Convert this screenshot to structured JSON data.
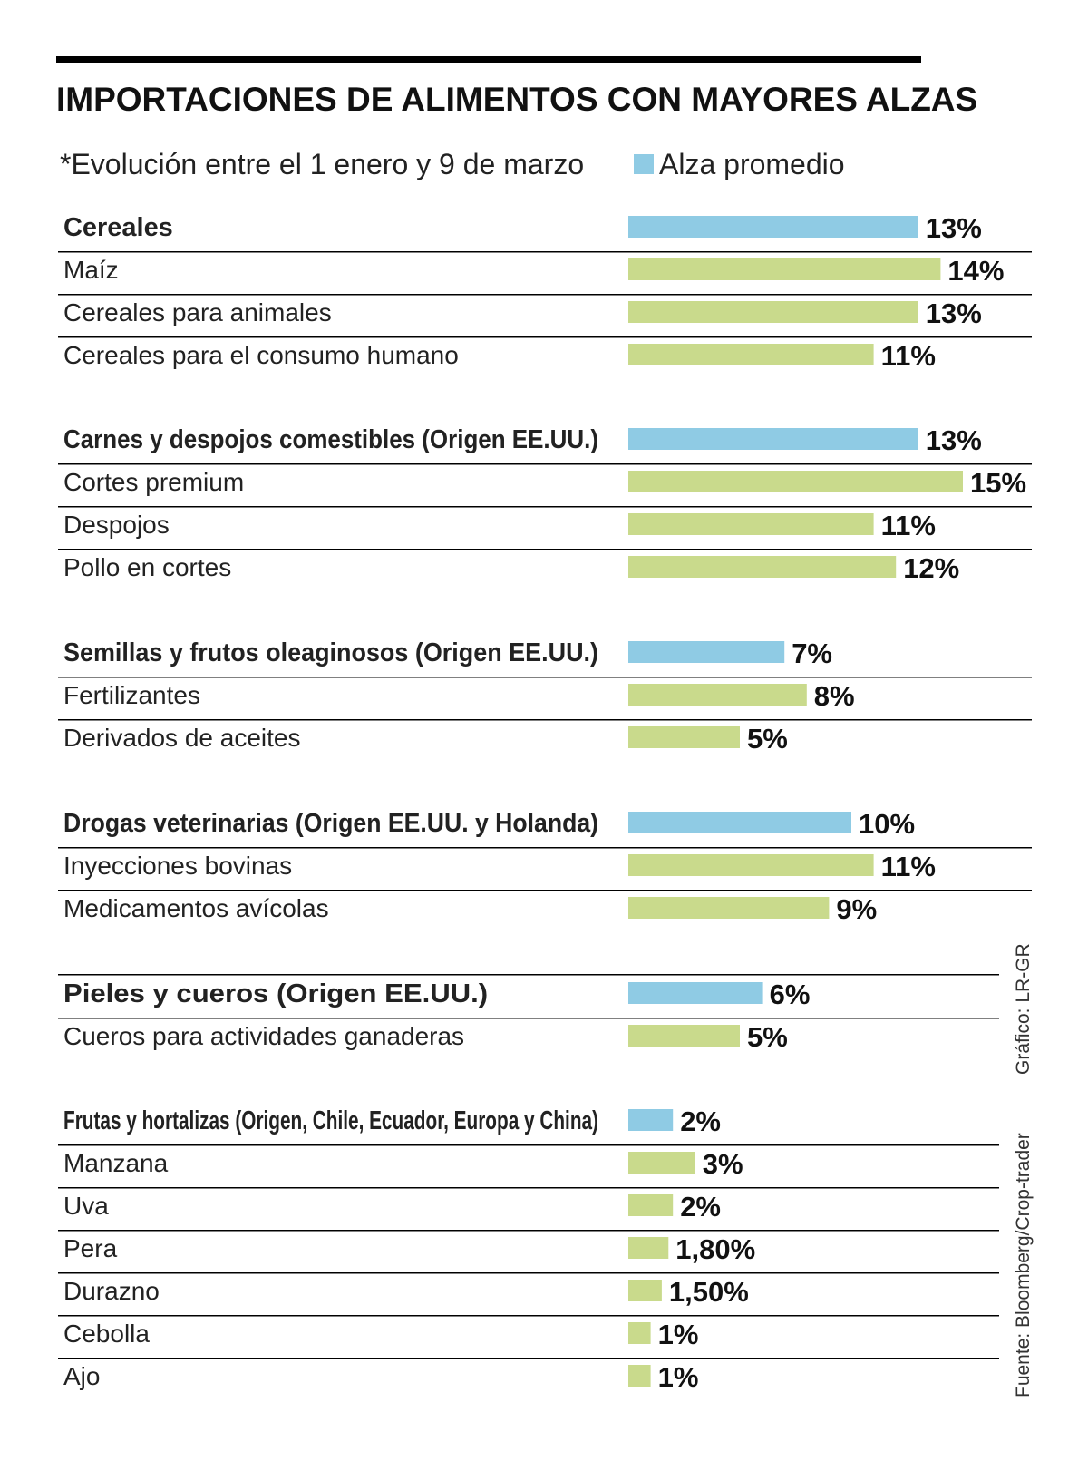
{
  "chart_data": {
    "type": "bar",
    "title": "IMPORTACIONES DE ALIMENTOS CON MAYORES ALZAS",
    "subtitle": "*Evolución entre el  1 enero y 9 de marzo",
    "legend": {
      "label": "Alza promedio",
      "position": "top"
    },
    "colors": {
      "average": "#8fcbe4",
      "item": "#c9da8c",
      "rule": "#000000"
    },
    "xlim": [
      0,
      15
    ],
    "groups": [
      {
        "label": "Cereales",
        "value": 13,
        "value_label": "13%",
        "items": [
          {
            "label": "Maíz",
            "value": 14,
            "value_label": "14%"
          },
          {
            "label": "Cereales para animales",
            "value": 13,
            "value_label": "13%"
          },
          {
            "label": "Cereales para el consumo humano",
            "value": 11,
            "value_label": "11%"
          }
        ]
      },
      {
        "label": "Carnes y despojos comestibles (Origen EE.UU.)",
        "value": 13,
        "value_label": "13%",
        "items": [
          {
            "label": "Cortes premium",
            "value": 15,
            "value_label": "15%"
          },
          {
            "label": "Despojos",
            "value": 11,
            "value_label": "11%"
          },
          {
            "label": "Pollo en cortes",
            "value": 12,
            "value_label": "12%"
          }
        ]
      },
      {
        "label": "Semillas y frutos oleaginosos (Origen EE.UU.)",
        "value": 7,
        "value_label": "7%",
        "items": [
          {
            "label": "Fertilizantes",
            "value": 8,
            "value_label": "8%"
          },
          {
            "label": "Derivados de aceites",
            "value": 5,
            "value_label": "5%"
          }
        ]
      },
      {
        "label": "Drogas veterinarias (Origen EE.UU. y Holanda)",
        "value": 10,
        "value_label": "10%",
        "items": [
          {
            "label": "Inyecciones bovinas",
            "value": 11,
            "value_label": "11%"
          },
          {
            "label": "Medicamentos avícolas",
            "value": 9,
            "value_label": "9%"
          }
        ]
      },
      {
        "label": "Pieles y cueros (Origen EE.UU.)",
        "value": 6,
        "value_label": "6%",
        "items": [
          {
            "label": "Cueros para actividades ganaderas",
            "value": 5,
            "value_label": "5%"
          }
        ]
      },
      {
        "label": "Frutas y hortalizas (Origen, Chile, Ecuador, Europa y China)",
        "value": 2,
        "value_label": "2%",
        "items": [
          {
            "label": "Manzana",
            "value": 3,
            "value_label": "3%"
          },
          {
            "label": "Uva",
            "value": 2,
            "value_label": "2%"
          },
          {
            "label": "Pera",
            "value": 1.8,
            "value_label": "1,80%"
          },
          {
            "label": "Durazno",
            "value": 1.5,
            "value_label": "1,50%"
          },
          {
            "label": "Cebolla",
            "value": 1,
            "value_label": "1%"
          },
          {
            "label": "Ajo",
            "value": 1,
            "value_label": "1%"
          }
        ]
      }
    ]
  },
  "credits": {
    "graphic": "Gráfico: LR-GR",
    "source": "Fuente: Bloomberg/Crop-trader"
  }
}
